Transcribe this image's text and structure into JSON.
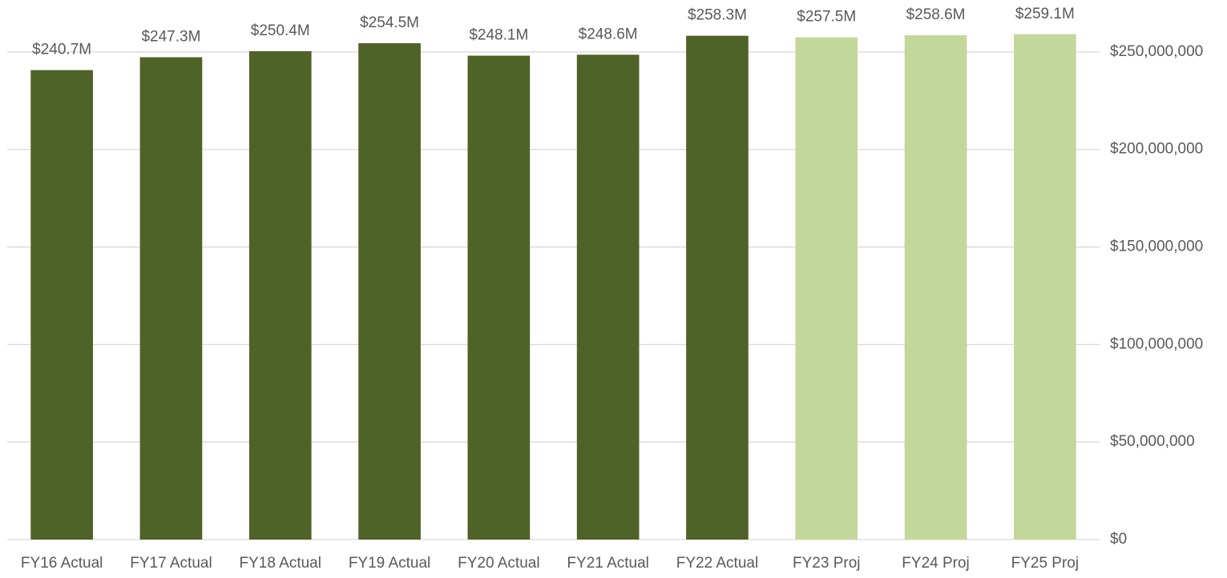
{
  "chart_data": {
    "type": "bar",
    "categories": [
      "FY16 Actual",
      "FY17 Actual",
      "FY18 Actual",
      "FY19 Actual",
      "FY20 Actual",
      "FY21 Actual",
      "FY22 Actual",
      "FY23 Proj",
      "FY24 Proj",
      "FY25 Proj"
    ],
    "values": [
      240700000,
      247300000,
      250400000,
      254500000,
      248100000,
      248600000,
      258300000,
      257500000,
      258600000,
      259100000
    ],
    "value_labels": [
      "$240.7M",
      "$247.3M",
      "$250.4M",
      "$254.5M",
      "$248.1M",
      "$248.6M",
      "$258.3M",
      "$257.5M",
      "$258.6M",
      "$259.1M"
    ],
    "colors": [
      "#4f6228",
      "#4f6228",
      "#4f6228",
      "#4f6228",
      "#4f6228",
      "#4f6228",
      "#4f6228",
      "#c4d79b",
      "#c4d79b",
      "#c4d79b"
    ],
    "ylim": [
      0,
      275000000
    ],
    "yticks": [
      {
        "value": 0,
        "label": "$0"
      },
      {
        "value": 50000000,
        "label": "$50,000,000"
      },
      {
        "value": 100000000,
        "label": "$100,000,000"
      },
      {
        "value": 150000000,
        "label": "$150,000,000"
      },
      {
        "value": 200000000,
        "label": "$200,000,000"
      },
      {
        "value": 250000000,
        "label": "$250,000,000"
      }
    ],
    "y_axis_side": "right",
    "grid": true
  }
}
